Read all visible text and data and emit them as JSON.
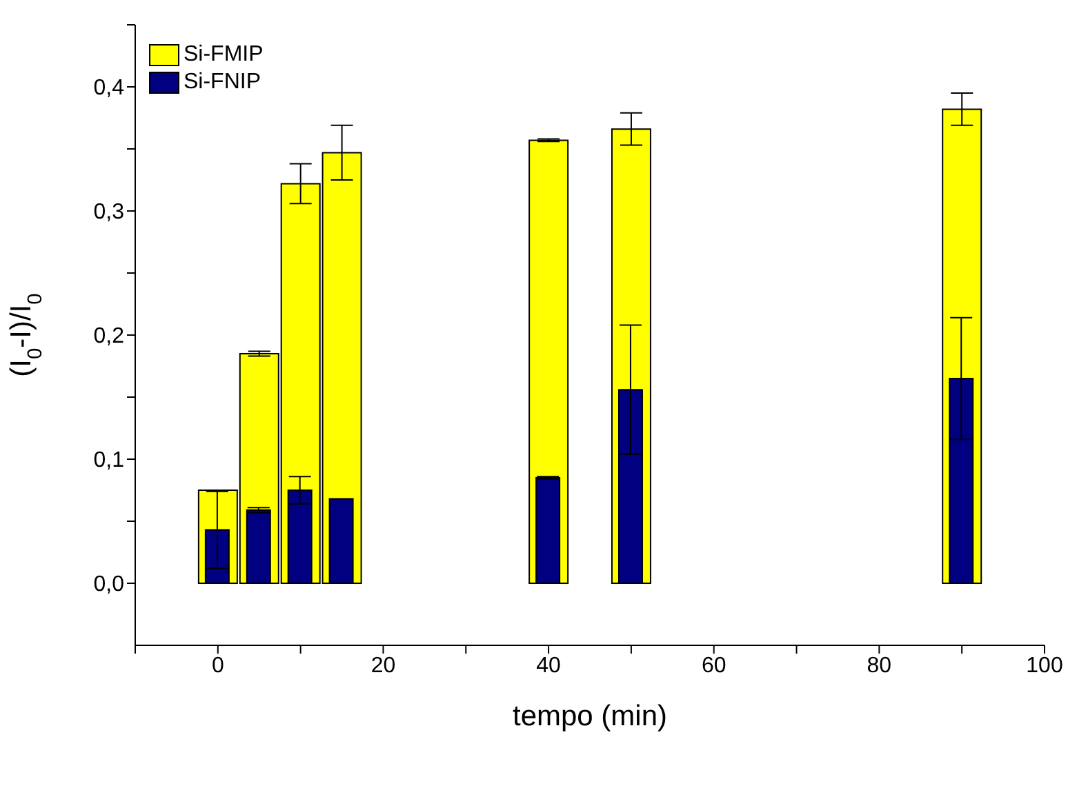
{
  "chart_data": {
    "type": "bar",
    "xlabel": "tempo (min)",
    "ylabel": "(I$_{0}$-I)/I$_{0}$",
    "x": [
      0,
      5,
      10,
      15,
      40,
      50,
      90
    ],
    "series": [
      {
        "name": "Si-FMIP",
        "color": "#ffff00",
        "values": [
          0.075,
          0.185,
          0.322,
          0.347,
          0.357,
          0.366,
          0.382
        ],
        "errors": [
          null,
          0.002,
          0.016,
          0.022,
          0.001,
          0.013,
          0.013
        ]
      },
      {
        "name": "Si-FNIP",
        "color": "#000080",
        "values": [
          0.043,
          0.059,
          0.075,
          0.068,
          0.085,
          0.156,
          0.165
        ],
        "errors": [
          0.031,
          0.002,
          0.011,
          null,
          0.001,
          0.052,
          0.049
        ]
      }
    ],
    "xlim": [
      -10,
      100
    ],
    "xticks": [
      {
        "value": -10,
        "label": null
      },
      0,
      {
        "value": 10,
        "label": null
      },
      20,
      {
        "value": 30,
        "label": null
      },
      40,
      {
        "value": 50,
        "label": null
      },
      60,
      {
        "value": 70,
        "label": null
      },
      80,
      {
        "value": 90,
        "label": null
      },
      100
    ],
    "ylim": [
      -0.05,
      0.45
    ],
    "yticks": [
      {
        "value": 0,
        "label": "0,0"
      },
      {
        "value": 0.05,
        "label": null
      },
      {
        "value": 0.1,
        "label": "0,1"
      },
      {
        "value": 0.15,
        "label": null
      },
      {
        "value": 0.2,
        "label": "0,2"
      },
      {
        "value": 0.25,
        "label": null
      },
      {
        "value": 0.3,
        "label": "0,3"
      },
      {
        "value": 0.35,
        "label": null
      },
      {
        "value": 0.4,
        "label": "0,4"
      },
      {
        "value": 0.45,
        "label": null
      }
    ],
    "legend": "top left",
    "grid": false
  }
}
